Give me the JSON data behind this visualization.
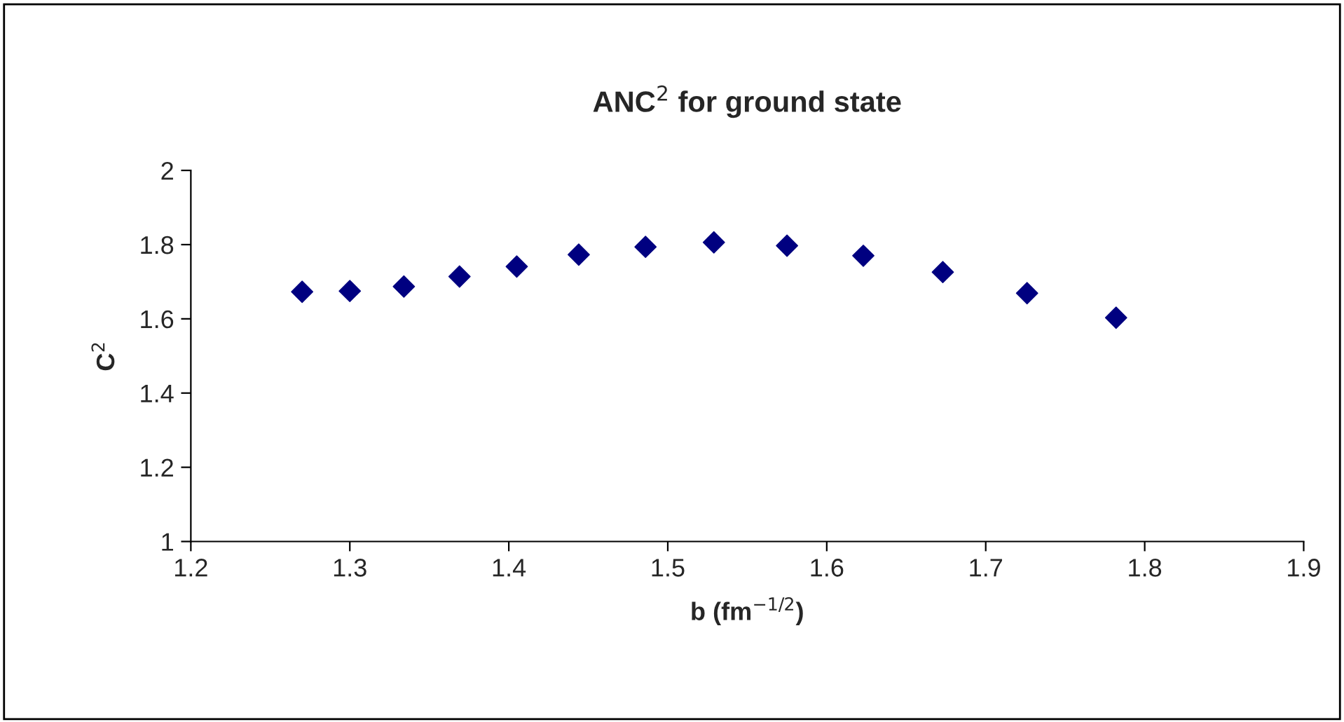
{
  "chart_data": {
    "type": "scatter",
    "title": "ANC$^{2}$ for ground state",
    "xlabel": "b (fm$^{−1/2}$)",
    "ylabel": "C$^{2}$",
    "xlim": [
      1.2,
      1.9
    ],
    "xticks": [
      {
        "value": 1.2,
        "label": "1.2"
      },
      {
        "value": 1.3,
        "label": "1.3"
      },
      {
        "value": 1.4,
        "label": "1.4"
      },
      {
        "value": 1.5,
        "label": "1.5"
      },
      {
        "value": 1.6,
        "label": "1.6"
      },
      {
        "value": 1.7,
        "label": "1.7"
      },
      {
        "value": 1.8,
        "label": "1.8"
      },
      {
        "value": 1.9,
        "label": "1.9"
      }
    ],
    "ylim": [
      1,
      2
    ],
    "yticks": [
      1,
      {
        "value": 1.2,
        "label": "1.2"
      },
      {
        "value": 1.4,
        "label": "1.4"
      },
      {
        "value": 1.6,
        "label": "1.6"
      },
      {
        "value": 1.8,
        "label": "1.8"
      },
      2
    ],
    "grid": false,
    "legend": false,
    "marker": "diamond",
    "series": [
      {
        "color": "#000080",
        "x": [
          1.27,
          1.3,
          1.334,
          1.369,
          1.405,
          1.444,
          1.486,
          1.529,
          1.575,
          1.623,
          1.673,
          1.726,
          1.782
        ],
        "values": [
          1.673,
          1.675,
          1.687,
          1.714,
          1.741,
          1.773,
          1.794,
          1.806,
          1.797,
          1.77,
          1.726,
          1.669,
          1.603
        ]
      }
    ]
  }
}
